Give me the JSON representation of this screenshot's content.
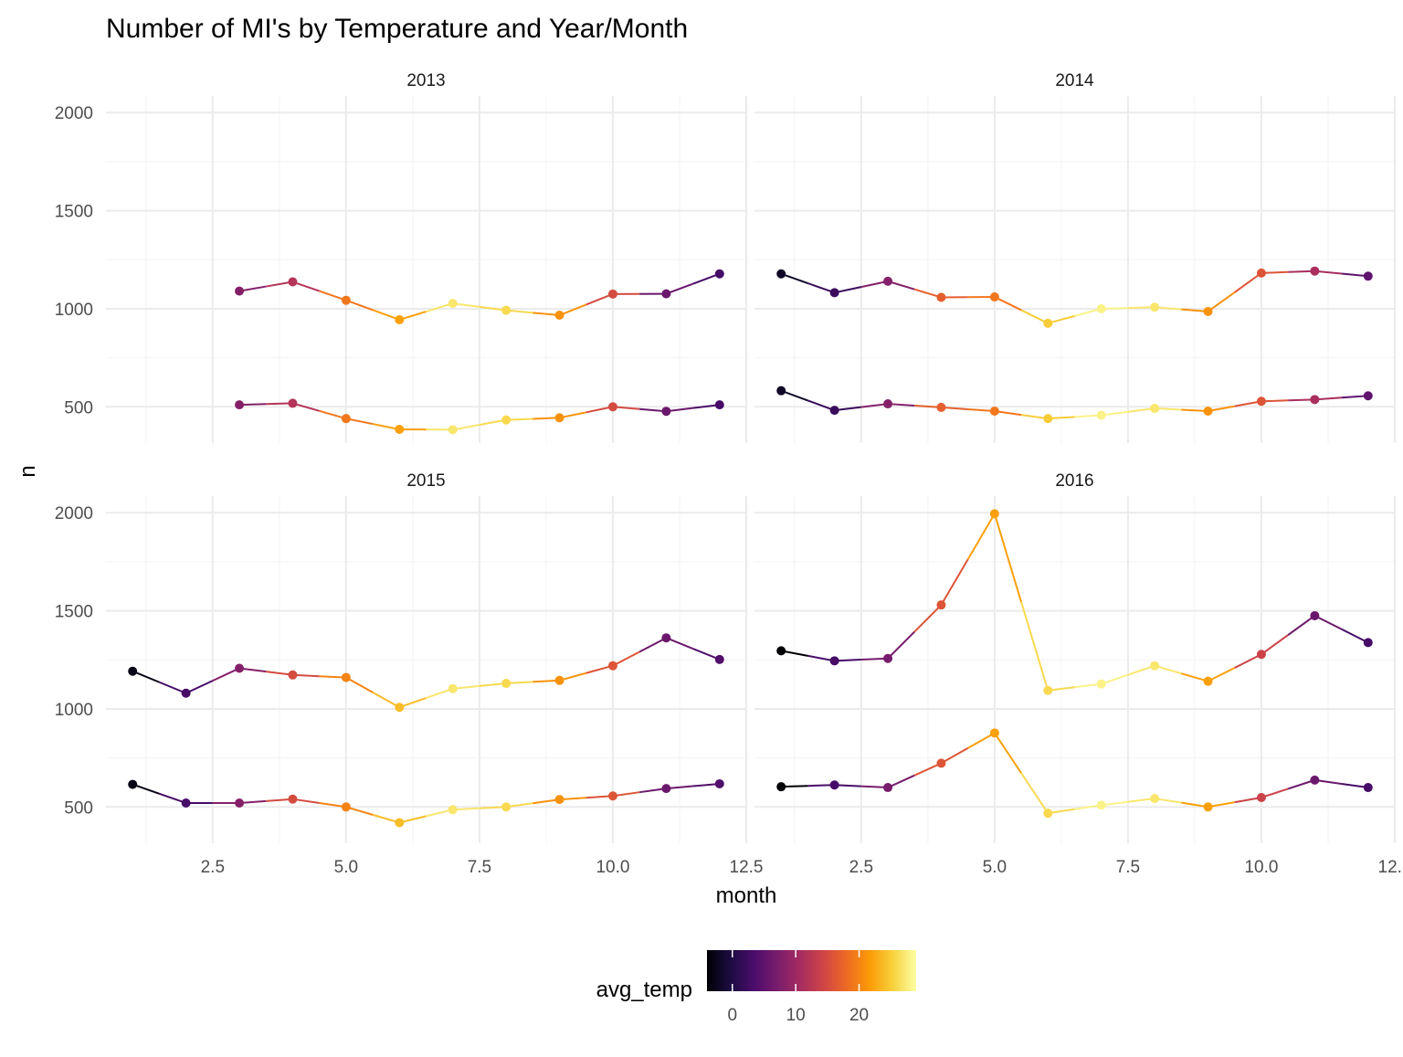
{
  "chart_data": {
    "type": "line",
    "title": "Number of MI's by Temperature and Year/Month",
    "xlabel": "month",
    "ylabel": "n",
    "xlim": [
      0.5,
      12.5
    ],
    "ylim": [
      315,
      2085
    ],
    "x_ticks": [
      2.5,
      5.0,
      7.5,
      10.0,
      12.5
    ],
    "x_tick_labels": [
      "2.5",
      "5.0",
      "7.5",
      "10.0",
      "12.5"
    ],
    "y_ticks": [
      500,
      1000,
      1500,
      2000
    ],
    "y_tick_labels": [
      "500",
      "1000",
      "1500",
      "2000"
    ],
    "grid": true,
    "color_scale": {
      "title": "avg_temp",
      "palette": "inferno",
      "domain": [
        -4,
        29
      ],
      "ticks": [
        0,
        10,
        20
      ],
      "tick_labels": [
        "0",
        "10",
        "20"
      ],
      "stops": [
        "#000004",
        "#1b0c41",
        "#4a0c6b",
        "#781c6d",
        "#a52c60",
        "#cf4446",
        "#ed6925",
        "#fb9b06",
        "#f7d13d",
        "#fcffa4"
      ],
      "placement": "bottom"
    },
    "facets": [
      {
        "label": "2013",
        "series": [
          {
            "x": [
              3,
              4,
              5,
              6,
              7,
              8,
              9,
              10,
              11,
              12
            ],
            "y": [
              1090,
              1137,
              1043,
              944,
              1027,
              992,
              967,
              1075,
              1076,
              1178
            ],
            "temp": [
              8,
              12,
              19,
              22,
              27,
              26,
              21,
              15,
              6,
              3
            ]
          },
          {
            "x": [
              3,
              4,
              5,
              6,
              7,
              8,
              9,
              10,
              11,
              12
            ],
            "y": [
              510,
              518,
              440,
              385,
              383,
              433,
              444,
              500,
              477,
              510
            ],
            "temp": [
              8,
              12,
              19,
              22,
              27,
              26,
              21,
              15,
              6,
              3
            ]
          }
        ]
      },
      {
        "label": "2014",
        "series": [
          {
            "x": [
              1,
              2,
              3,
              4,
              5,
              6,
              7,
              8,
              9,
              10,
              11,
              12
            ],
            "y": [
              1178,
              1082,
              1140,
              1058,
              1060,
              926,
              1000,
              1008,
              986,
              1182,
              1192,
              1166
            ],
            "temp": [
              -2,
              2,
              8,
              17,
              19,
              25,
              28,
              27,
              21,
              16,
              11,
              5
            ]
          },
          {
            "x": [
              1,
              2,
              3,
              4,
              5,
              6,
              7,
              8,
              9,
              10,
              11,
              12
            ],
            "y": [
              582,
              482,
              515,
              497,
              478,
              440,
              457,
              492,
              478,
              528,
              537,
              556
            ],
            "temp": [
              -2,
              2,
              8,
              17,
              19,
              25,
              28,
              27,
              21,
              16,
              11,
              5
            ]
          }
        ]
      },
      {
        "label": "2015",
        "series": [
          {
            "x": [
              1,
              2,
              3,
              4,
              5,
              6,
              7,
              8,
              9,
              10,
              11,
              12
            ],
            "y": [
              1192,
              1080,
              1207,
              1173,
              1160,
              1008,
              1103,
              1130,
              1145,
              1220,
              1362,
              1252
            ],
            "temp": [
              -3,
              3,
              8,
              15,
              20,
              24,
              27,
              26,
              21,
              16,
              6,
              4
            ]
          },
          {
            "x": [
              1,
              2,
              3,
              4,
              5,
              6,
              7,
              8,
              9,
              10,
              11,
              12
            ],
            "y": [
              615,
              520,
              520,
              540,
              500,
              420,
              486,
              500,
              538,
              556,
              594,
              618
            ],
            "temp": [
              -3,
              3,
              8,
              15,
              20,
              24,
              27,
              26,
              21,
              16,
              6,
              4
            ]
          }
        ]
      },
      {
        "label": "2016",
        "series": [
          {
            "x": [
              1,
              2,
              3,
              4,
              5,
              6,
              7,
              8,
              9,
              10,
              11,
              12
            ],
            "y": [
              1296,
              1245,
              1257,
              1530,
              1995,
              1094,
              1127,
              1220,
              1141,
              1278,
              1475,
              1338
            ],
            "temp": [
              -4,
              3,
              7,
              16,
              22,
              26,
              28,
              27,
              22,
              14,
              6,
              3
            ]
          },
          {
            "x": [
              1,
              2,
              3,
              4,
              5,
              6,
              7,
              8,
              9,
              10,
              11,
              12
            ],
            "y": [
              603,
              612,
              599,
              723,
              877,
              468,
              509,
              543,
              500,
              548,
              637,
              599
            ],
            "temp": [
              -4,
              3,
              7,
              16,
              22,
              26,
              28,
              27,
              22,
              14,
              6,
              3
            ]
          }
        ]
      }
    ]
  }
}
